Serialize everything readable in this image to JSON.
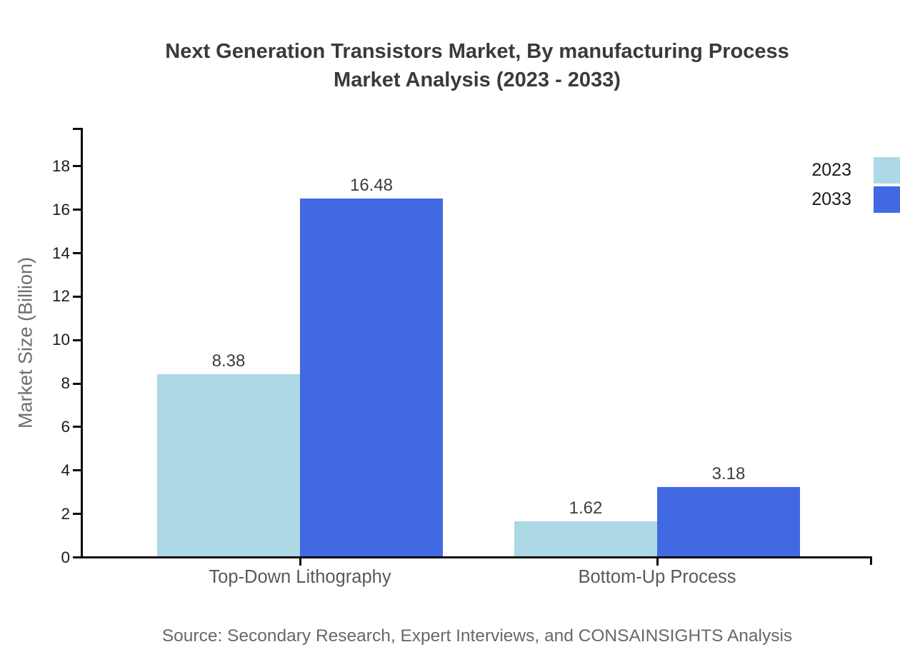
{
  "title": {
    "line1": "Next Generation Transistors Market, By manufacturing Process",
    "line2": "Market Analysis (2023 - 2033)"
  },
  "source": "Source: Secondary Research, Expert Interviews, and CONSAINSIGHTS Analysis",
  "colors": {
    "series_2023": "#ADD8E6",
    "series_2033": "#4169E1",
    "axis": "#0a0a0a",
    "title_text": "#3a3a3a",
    "tick_text": "#1a1a1a",
    "category_text": "#595959",
    "muted_text": "#6e6e6e"
  },
  "chart_data": {
    "type": "bar",
    "title": "Next Generation Transistors Market, By manufacturing Process Market Analysis (2023 - 2033)",
    "categories": [
      "Top-Down Lithography",
      "Bottom-Up Process"
    ],
    "series": [
      {
        "name": "2023",
        "color": "#ADD8E6",
        "values": [
          8.38,
          1.62
        ]
      },
      {
        "name": "2033",
        "color": "#4169E1",
        "values": [
          16.48,
          3.18
        ]
      }
    ],
    "xlabel": "",
    "ylabel": "Market Size (Billion)",
    "ylim": [
      0,
      18
    ],
    "ytick_step": 2,
    "grid": false,
    "legend_position": "top-right",
    "value_labels": [
      "8.38",
      "16.48",
      "1.62",
      "3.18"
    ]
  }
}
